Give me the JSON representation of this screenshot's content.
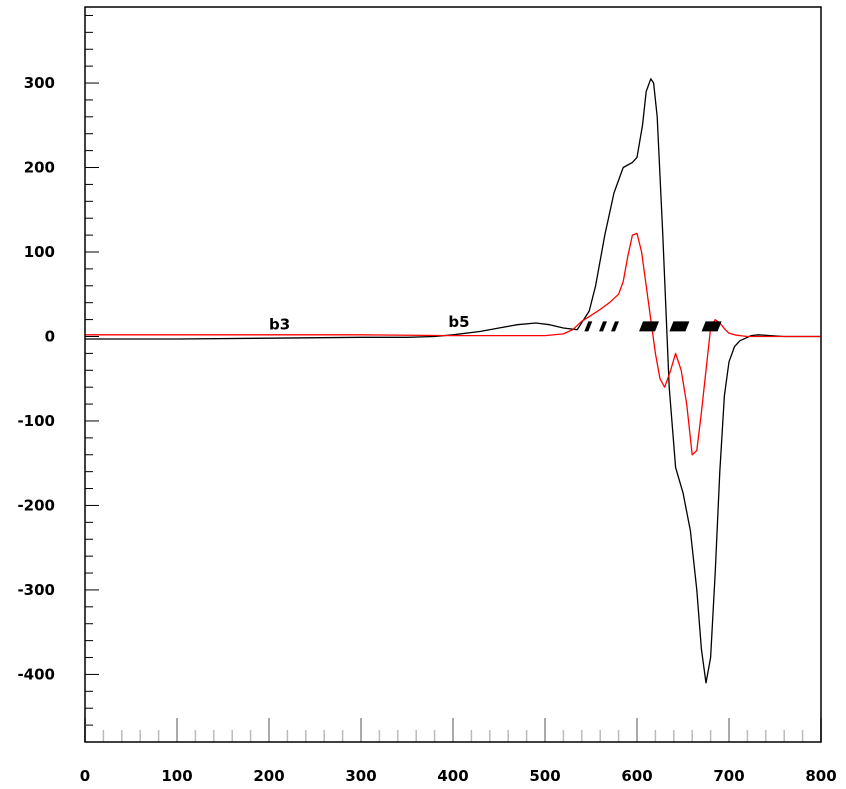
{
  "chart_data": {
    "type": "line",
    "title": "",
    "xlabel": "",
    "ylabel": "",
    "xlim": [
      0,
      800
    ],
    "ylim": [
      -480,
      390
    ],
    "grid": false,
    "x_ticks": [
      0,
      100,
      200,
      300,
      400,
      500,
      600,
      700,
      800
    ],
    "y_ticks": [
      -400,
      -300,
      -200,
      -100,
      0,
      100,
      200,
      300
    ],
    "x_tick_labels": [
      "0",
      "100",
      "200",
      "300",
      "400",
      "500",
      "600",
      "700",
      "800"
    ],
    "y_tick_labels": [
      "-400",
      "-300",
      "-200",
      "-100",
      "0",
      "100",
      "200",
      "300"
    ],
    "series": [
      {
        "color": "#000000",
        "x": [
          0,
          100,
          200,
          300,
          350,
          380,
          400,
          430,
          450,
          470,
          490,
          505,
          520,
          535,
          548,
          555,
          565,
          575,
          585,
          595,
          600,
          606,
          610,
          615,
          618,
          622,
          628,
          635,
          642,
          650,
          658,
          665,
          670,
          675,
          680,
          685,
          690,
          695,
          700,
          706,
          712,
          718,
          724,
          732,
          745,
          760,
          780,
          800
        ],
        "y": [
          -3,
          -3,
          -2,
          -1,
          -1,
          0,
          2,
          6,
          10,
          14,
          16,
          14,
          10,
          8,
          30,
          60,
          120,
          170,
          200,
          206,
          212,
          250,
          290,
          305,
          300,
          260,
          120,
          -60,
          -155,
          -185,
          -230,
          -300,
          -370,
          -410,
          -380,
          -280,
          -160,
          -70,
          -30,
          -12,
          -5,
          -2,
          1,
          2,
          1,
          0,
          0,
          0
        ]
      },
      {
        "color": "#ff0000",
        "x": [
          0,
          100,
          200,
          300,
          400,
          450,
          500,
          520,
          530,
          540,
          550,
          560,
          570,
          580,
          585,
          590,
          595,
          600,
          605,
          610,
          615,
          620,
          625,
          630,
          636,
          642,
          648,
          654,
          660,
          665,
          670,
          675,
          680,
          685,
          690,
          696,
          700,
          706,
          712,
          720,
          740,
          760,
          800
        ],
        "y": [
          2,
          2,
          2,
          2,
          1,
          1,
          1,
          3,
          8,
          18,
          25,
          32,
          40,
          50,
          65,
          95,
          120,
          122,
          100,
          60,
          20,
          -20,
          -50,
          -60,
          -42,
          -20,
          -40,
          -80,
          -140,
          -135,
          -90,
          -40,
          10,
          20,
          16,
          8,
          4,
          2,
          1,
          0,
          0,
          0,
          0
        ]
      }
    ],
    "annotations": [
      {
        "text": "b3",
        "x": 200,
        "y": 8
      },
      {
        "text": "b5",
        "x": 395,
        "y": 11
      }
    ],
    "markers": {
      "y": 12,
      "x": [
        546,
        562,
        575,
        612,
        645,
        680
      ]
    }
  }
}
